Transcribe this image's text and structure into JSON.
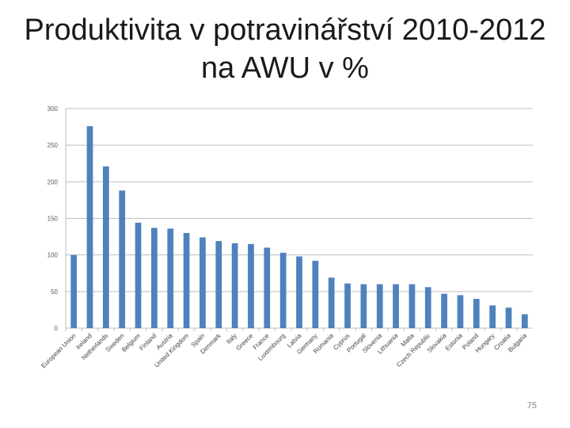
{
  "slide": {
    "title": "Produktivita v potravinářství 2010-2012 na AWU v %",
    "page_number": "75"
  },
  "chart_data": {
    "type": "bar",
    "categories": [
      "European Union",
      "Ireland",
      "Netherlands",
      "Sweden",
      "Belgium",
      "Finland",
      "Austria",
      "United Kingdom",
      "Spain",
      "Denmark",
      "Italy",
      "Greece",
      "France",
      "Luxembourg",
      "Latvia",
      "Germany",
      "Romania",
      "Cyprus",
      "Portugal",
      "Slovenia",
      "Lithuania",
      "Malta",
      "Czech Republic",
      "Slovakia",
      "Estonia",
      "Poland",
      "Hungary",
      "Croatia",
      "Bulgaria"
    ],
    "values": [
      100,
      276,
      221,
      188,
      144,
      137,
      136,
      130,
      124,
      119,
      116,
      115,
      110,
      103,
      98,
      92,
      69,
      61,
      60,
      60,
      60,
      60,
      56,
      47,
      45,
      40,
      31,
      28,
      19
    ],
    "ylim": [
      0,
      300
    ],
    "yticks": [
      "0",
      "50",
      "100",
      "150",
      "200",
      "250",
      "300"
    ],
    "grid": true,
    "bar_color": "#4f81bd",
    "grid_color": "#bfbfbf"
  }
}
